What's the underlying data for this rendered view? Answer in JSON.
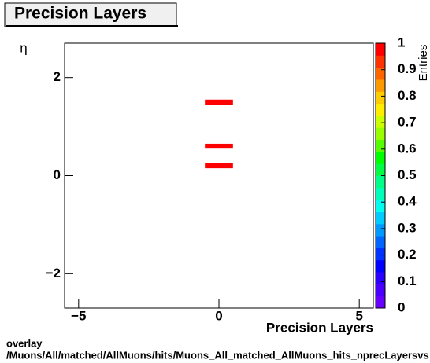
{
  "chart_data": {
    "type": "heatmap",
    "title": "Precision Layers",
    "x_label": "Precision Layers",
    "y_label": "η",
    "z_label": "Entries",
    "footer": [
      "overlay",
      "/Muons/All/matched/AllMuons/hits/Muons_All_matched_AllMuons_hits_nprecLayersvs"
    ],
    "xlim": [
      -5.5,
      5.5
    ],
    "ylim": [
      -2.7,
      2.7
    ],
    "xticks": [
      {
        "value": -5,
        "label": "−5"
      },
      0,
      5
    ],
    "yticks": [
      {
        "value": -2,
        "label": "−2"
      },
      0,
      2
    ],
    "zlim": [
      0,
      1
    ],
    "zticks": [
      0,
      0.1,
      0.2,
      0.3,
      0.4,
      0.5,
      0.6,
      0.7,
      0.8,
      0.9,
      1
    ],
    "palette": [
      "#6600ff",
      "#4b00ff",
      "#2a00ff",
      "#0000ff",
      "#0033ff",
      "#0066ff",
      "#0099ff",
      "#00ccff",
      "#00ffee",
      "#00ffbb",
      "#00ff88",
      "#00ff44",
      "#00ff00",
      "#55ff00",
      "#99ff00",
      "#ccff00",
      "#ffee00",
      "#ffcc00",
      "#ff9900",
      "#ff6600",
      "#ff3300",
      "#ff0000"
    ],
    "cells": [
      {
        "x": [
          -0.5,
          0.5
        ],
        "y": [
          1.45,
          1.55
        ],
        "value": 1
      },
      {
        "x": [
          -0.5,
          0.5
        ],
        "y": [
          0.55,
          0.65
        ],
        "value": 1
      },
      {
        "x": [
          -0.5,
          0.5
        ],
        "y": [
          0.15,
          0.25
        ],
        "value": 1
      }
    ]
  }
}
